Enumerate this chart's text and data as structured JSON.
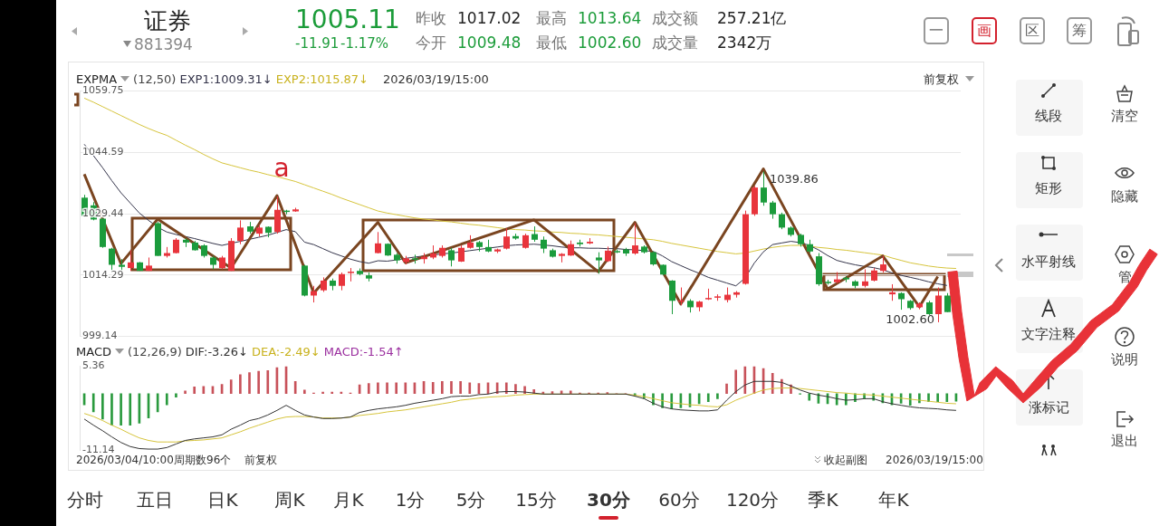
{
  "chart_data": [
    {
      "type": "candlestick",
      "categories": [
        null,
        null,
        null,
        null,
        null,
        null,
        null,
        null,
        null,
        null,
        null,
        null,
        null,
        null,
        null,
        null,
        null,
        null,
        null,
        null,
        null,
        null,
        null,
        null,
        null,
        null,
        null,
        null,
        null,
        null,
        null,
        null,
        null,
        null,
        null,
        null,
        null,
        null,
        null,
        null,
        null,
        null,
        null,
        null,
        null,
        null,
        null,
        null,
        null,
        null,
        null,
        null,
        null,
        null,
        null,
        null,
        null,
        null,
        null,
        null,
        null,
        null,
        null,
        null,
        null,
        null,
        null,
        null,
        null,
        null,
        null,
        null,
        null,
        null,
        null,
        null,
        null,
        null,
        null,
        null,
        null,
        null,
        null,
        null,
        null,
        null,
        null,
        null,
        null,
        null,
        null,
        null,
        null,
        null,
        null,
        null
      ],
      "ohlc": [
        [
          1033.4,
          1034.1,
          1028.6,
          1028.9
        ],
        [
          1031.5,
          1032.3,
          1027.8,
          1028.0
        ],
        [
          1028.2,
          1028.4,
          1021.0,
          1021.2
        ],
        [
          1020.8,
          1021.0,
          1015.3,
          1016.8
        ],
        [
          1016.8,
          1018.2,
          1015.3,
          1016.3
        ],
        [
          1016.0,
          1020.4,
          1015.3,
          1017.4
        ],
        [
          1017.4,
          1017.5,
          1015.3,
          1015.3
        ],
        [
          1015.3,
          1018.6,
          1015.3,
          1016.6
        ],
        [
          1027.1,
          1027.4,
          1019.0,
          1019.0
        ],
        [
          1019.0,
          1021.2,
          1018.6,
          1019.7
        ],
        [
          1019.7,
          1023.4,
          1019.6,
          1023.0
        ],
        [
          1023.0,
          1023.4,
          1021.2,
          1022.3
        ],
        [
          1022.3,
          1022.7,
          1020.3,
          1020.4
        ],
        [
          1021.6,
          1021.9,
          1018.6,
          1019.0
        ],
        [
          1018.6,
          1019.0,
          1015.7,
          1016.8
        ],
        [
          1016.0,
          1019.0,
          1015.7,
          1018.6
        ],
        [
          1015.3,
          1023.4,
          1015.3,
          1022.7
        ],
        [
          1022.7,
          1027.8,
          1021.9,
          1026.0
        ],
        [
          1026.3,
          1027.4,
          1024.5,
          1025.0
        ],
        [
          1024.5,
          1026.7,
          1023.8,
          1026.0
        ],
        [
          1026.2,
          1026.3,
          1023.6,
          1024.7
        ],
        [
          1024.9,
          1033.7,
          1024.5,
          1030.4
        ],
        [
          1030.2,
          1030.4,
          1029.3,
          1029.9
        ],
        [
          1030.0,
          1030.9,
          1029.9,
          1030.5
        ],
        [
          1016.6,
          1016.8,
          1009.0,
          1009.2
        ],
        [
          1009.2,
          1011.6,
          1007.5,
          1010.3
        ],
        [
          1010.5,
          1013.7,
          1010.1,
          1012.9
        ],
        [
          1012.9,
          1013.4,
          1010.5,
          1011.6
        ],
        [
          1011.6,
          1014.9,
          1010.5,
          1014.5
        ],
        [
          1014.8,
          1016.0,
          1012.7,
          1015.1
        ],
        [
          1015.3,
          1015.9,
          1014.2,
          1014.5
        ],
        [
          1014.2,
          1014.9,
          1012.7,
          1013.4
        ],
        [
          1019.7,
          1024.9,
          1019.6,
          1022.1
        ],
        [
          1022.0,
          1022.1,
          1019.0,
          1019.1
        ],
        [
          1019.3,
          1019.7,
          1017.1,
          1017.9
        ],
        [
          1017.5,
          1019.0,
          1016.9,
          1018.4
        ],
        [
          1018.4,
          1019.3,
          1017.1,
          1018.1
        ],
        [
          1018.2,
          1019.7,
          1017.1,
          1018.8
        ],
        [
          1018.6,
          1021.6,
          1018.2,
          1019.6
        ],
        [
          1019.0,
          1021.6,
          1018.6,
          1021.0
        ],
        [
          1020.4,
          1021.0,
          1016.4,
          1017.9
        ],
        [
          1017.6,
          1021.6,
          1017.5,
          1021.0
        ],
        [
          1021.0,
          1024.1,
          1020.8,
          1022.3
        ],
        [
          1022.4,
          1022.7,
          1020.1,
          1021.2
        ],
        [
          1021.2,
          1023.0,
          1019.9,
          1020.1
        ],
        [
          1020.1,
          1020.8,
          1019.7,
          1020.6
        ],
        [
          1020.8,
          1025.8,
          1020.6,
          1023.8
        ],
        [
          1023.9,
          1024.5,
          1023.0,
          1023.3
        ],
        [
          1021.0,
          1024.5,
          1020.8,
          1024.1
        ],
        [
          1024.4,
          1026.3,
          1022.5,
          1023.0
        ],
        [
          1023.0,
          1023.8,
          1019.7,
          1020.8
        ],
        [
          1020.4,
          1020.8,
          1018.6,
          1018.8
        ],
        [
          1019.0,
          1019.7,
          1017.4,
          1019.5
        ],
        [
          1019.1,
          1022.8,
          1019.0,
          1021.9
        ],
        [
          1022.3,
          1023.0,
          1021.3,
          1021.9
        ],
        [
          1022.1,
          1023.4,
          1021.9,
          1022.5
        ],
        [
          1018.6,
          1019.9,
          1014.6,
          1017.9
        ],
        [
          1017.7,
          1021.3,
          1017.5,
          1020.3
        ],
        [
          1020.2,
          1020.6,
          1019.7,
          1020.0
        ],
        [
          1020.6,
          1021.0,
          1019.0,
          1019.6
        ],
        [
          1019.6,
          1027.1,
          1019.3,
          1021.6
        ],
        [
          1021.3,
          1021.6,
          1019.6,
          1019.9
        ],
        [
          1019.9,
          1020.1,
          1016.6,
          1016.9
        ],
        [
          1016.8,
          1016.9,
          1014.2,
          1014.4
        ],
        [
          1012.9,
          1013.0,
          1004.6,
          1007.9
        ],
        [
          1007.7,
          1011.2,
          1006.8,
          1008.0
        ],
        [
          1007.9,
          1008.3,
          1005.0,
          1006.3
        ],
        [
          1006.3,
          1007.9,
          1005.3,
          1007.7
        ],
        [
          1008.3,
          1010.9,
          1008.1,
          1008.6
        ],
        [
          1008.7,
          1009.5,
          1007.9,
          1009.0
        ],
        [
          1008.1,
          1011.2,
          1007.5,
          1009.4
        ],
        [
          1009.4,
          1010.3,
          1008.7,
          1010.0
        ],
        [
          1012.1,
          1030.2,
          1011.9,
          1029.3
        ],
        [
          1029.3,
          1036.3,
          1028.9,
          1035.9
        ],
        [
          1035.9,
          1039.86,
          1031.4,
          1032.2
        ],
        [
          1032.2,
          1032.6,
          1028.2,
          1029.3
        ],
        [
          1029.3,
          1029.7,
          1025.6,
          1026.0
        ],
        [
          1026.0,
          1026.3,
          1023.8,
          1024.2
        ],
        [
          1024.2,
          1024.5,
          1021.3,
          1021.9
        ],
        [
          1021.9,
          1023.0,
          1019.7,
          1020.1
        ],
        [
          1018.9,
          1019.7,
          1011.6,
          1012.0
        ],
        [
          1012.6,
          1013.1,
          1011.9,
          1012.3
        ],
        [
          1012.5,
          1015.0,
          1012.2,
          1013.2
        ],
        [
          1013.6,
          1014.0,
          1012.5,
          1013.2
        ],
        [
          1012.7,
          1013.0,
          1011.0,
          1011.6
        ],
        [
          1011.6,
          1015.7,
          1011.2,
          1012.7
        ],
        [
          1012.9,
          1016.0,
          1012.7,
          1015.4
        ],
        [
          1015.3,
          1019.0,
          1014.9,
          1016.9
        ],
        [
          1009.5,
          1012.0,
          1007.9,
          1010.0
        ],
        [
          1009.8,
          1010.0,
          1005.7,
          1008.3
        ],
        [
          1007.9,
          1008.1,
          1005.7,
          1006.1
        ],
        [
          1006.3,
          1007.5,
          1005.8,
          1007.2
        ],
        [
          1007.5,
          1007.9,
          1004.4,
          1004.6
        ],
        [
          1004.6,
          1011.2,
          1002.6,
          1009.2
        ],
        [
          1009.2,
          1009.8,
          1005.1,
          1005.11
        ],
        null
      ],
      "colors": [
        "#1b9b3c",
        "#1b9b3c",
        "#1b9b3c",
        "#1b9b3c",
        "#1b9b3c",
        "#e8343c",
        "#1b9b3c",
        "#e8343c",
        "#1b9b3c",
        "#e8343c",
        "#e8343c",
        "#1b9b3c",
        "#1b9b3c",
        "#1b9b3c",
        "#1b9b3c",
        "#e8343c",
        "#e8343c",
        "#e8343c",
        "#1b9b3c",
        "#e8343c",
        "#1b9b3c",
        "#e8343c",
        "#1b9b3c",
        "#e8343c",
        "#1b9b3c",
        "#e8343c",
        "#e8343c",
        "#1b9b3c",
        "#e8343c",
        "#e8343c",
        "#1b9b3c",
        "#1b9b3c",
        "#e8343c",
        "#1b9b3c",
        "#1b9b3c",
        "#e8343c",
        "#1b9b3c",
        "#e8343c",
        "#e8343c",
        "#e8343c",
        "#1b9b3c",
        "#e8343c",
        "#e8343c",
        "#1b9b3c",
        "#1b9b3c",
        "#e8343c",
        "#e8343c",
        "#1b9b3c",
        "#e8343c",
        "#1b9b3c",
        "#1b9b3c",
        "#1b9b3c",
        "#e8343c",
        "#e8343c",
        "#1b9b3c",
        "#e8343c",
        "#1b9b3c",
        "#e8343c",
        "#1b9b3c",
        "#1b9b3c",
        "#e8343c",
        "#1b9b3c",
        "#1b9b3c",
        "#1b9b3c",
        "#1b9b3c",
        "#e8343c",
        "#1b9b3c",
        "#e8343c",
        "#e8343c",
        "#e8343c",
        "#e8343c",
        "#e8343c",
        "#e8343c",
        "#e8343c",
        "#1b9b3c",
        "#1b9b3c",
        "#1b9b3c",
        "#1b9b3c",
        "#1b9b3c",
        "#1b9b3c",
        "#1b9b3c",
        "#1b9b3c",
        "#e8343c",
        "#1b9b3c",
        "#1b9b3c",
        "#e8343c",
        "#e8343c",
        "#e8343c",
        "#e8343c",
        "#1b9b3c",
        "#1b9b3c",
        "#e8343c",
        "#1b9b3c",
        "#e8343c",
        "#1b9b3c",
        "#1b9b3c"
      ],
      "ylim": [
        999.14,
        1059.75
      ],
      "yticks": [
        999.14,
        1014.29,
        1029.44,
        1044.59,
        1059.75
      ],
      "grid": "y",
      "tick_labels": "y",
      "legend": "top left",
      "series": [
        {
          "type": "line",
          "color": "#7a4520",
          "values": [
            1039.2,
            null,
            null,
            null,
            1017.1,
            null,
            null,
            null,
            1028.1,
            null,
            null,
            null,
            null,
            null,
            null,
            null,
            1016.0,
            null,
            null,
            null,
            null,
            1033.9,
            null,
            null,
            null,
            1009.8,
            null,
            null,
            null,
            null,
            null,
            null,
            1027.3,
            null,
            null,
            1017.3,
            null,
            null,
            null,
            null,
            null,
            null,
            null,
            null,
            null,
            null,
            null,
            null,
            null,
            1027.9,
            null,
            null,
            null,
            null,
            null,
            null,
            1015.1,
            null,
            null,
            null,
            1027.3,
            null,
            null,
            null,
            null,
            1007.1,
            null,
            null,
            null,
            null,
            null,
            null,
            null,
            null,
            1040.5,
            null,
            null,
            null,
            null,
            null,
            null,
            1010.8,
            null,
            null,
            null,
            null,
            null,
            1019.0,
            null,
            null,
            null,
            1006.4,
            null,
            1013.9,
            null,
            null
          ]
        },
        {
          "name": "EXP1:1009.31↓",
          "type": "line",
          "color": "#34344a",
          "values": [
            1046.6,
            1043.8,
            1040.8,
            1037.6,
            1034.6,
            1032.1,
            1029.6,
            1027.8,
            1026.1,
            1024.9,
            1024.3,
            1023.8,
            1023.3,
            1022.7,
            1022.1,
            1021.6,
            1022.1,
            1022.6,
            1023.1,
            1023.6,
            1024.1,
            1024.8,
            1025.5,
            1025.0,
            1022.4,
            1021.8,
            1020.8,
            1019.8,
            1019.0,
            1018.2,
            1017.6,
            1017.2,
            1017.8,
            1017.7,
            1018.0,
            1018.4,
            1018.7,
            1019.0,
            1019.2,
            1019.5,
            1019.7,
            1020.0,
            1020.3,
            1020.6,
            1020.9,
            1021.2,
            1021.5,
            1021.7,
            1021.8,
            1021.9,
            1021.7,
            1021.5,
            1021.2,
            1021.0,
            1021.0,
            1020.9,
            1020.9,
            1020.8,
            1020.8,
            1020.6,
            1020.5,
            1020.3,
            1020.1,
            1019.0,
            1017.6,
            1016.6,
            1015.6,
            1014.7,
            1013.7,
            1013.0,
            1012.3,
            1011.6,
            1013.5,
            1017.2,
            1020.0,
            1021.8,
            1022.2,
            1022.6,
            1022.3,
            1021.6,
            1020.5,
            1019.1,
            1017.9,
            1017.3,
            1016.8,
            1016.4,
            1016.1,
            1015.6,
            1014.8,
            1014.2,
            1013.7,
            1013.2,
            1012.6,
            1012.1,
            1011.7,
            null
          ]
        },
        {
          "name": "EXP2:1015.87↓",
          "type": "line",
          "color": "#d6c43c",
          "values": [
            1058.0,
            1057.0,
            1055.9,
            1054.8,
            1053.7,
            1052.6,
            1051.5,
            1050.5,
            1049.6,
            1048.8,
            1047.6,
            1046.4,
            1045.3,
            1044.1,
            1043.0,
            1042.0,
            1041.4,
            1040.8,
            1040.2,
            1039.7,
            1039.1,
            1038.6,
            1038.0,
            1037.4,
            1036.6,
            1035.8,
            1035.0,
            1034.2,
            1033.3,
            1032.5,
            1031.7,
            1030.9,
            1030.1,
            1029.6,
            1029.2,
            1028.8,
            1028.4,
            1028.1,
            1027.9,
            1027.6,
            1027.4,
            1027.1,
            1026.8,
            1026.6,
            1026.3,
            1026.0,
            1025.7,
            1025.5,
            1025.4,
            1025.2,
            1025.1,
            1024.9,
            1024.8,
            1024.6,
            1024.5,
            1024.3,
            1024.2,
            1024.0,
            1023.8,
            1023.6,
            1023.4,
            1023.2,
            1023.0,
            1022.6,
            1022.1,
            1021.7,
            1021.3,
            1020.9,
            1020.5,
            1020.1,
            1019.8,
            1019.5,
            1019.7,
            1020.2,
            1020.7,
            1021.1,
            1021.4,
            1021.6,
            1021.6,
            1021.4,
            1021.1,
            1020.9,
            1020.6,
            1020.4,
            1020.1,
            1019.8,
            1019.5,
            1019.2,
            1018.5,
            1017.9,
            1017.3,
            1016.9,
            1016.5,
            1016.2,
            1016.0,
            1015.9
          ]
        }
      ],
      "annotations": [
        "EXPMA",
        "(12,50)",
        "2026/03/19/15:00",
        "前复权",
        "a",
        "1039.86",
        "1002.60"
      ]
    },
    {
      "type": "bar",
      "categories": [
        null,
        null,
        null,
        null,
        null,
        null,
        null,
        null,
        null,
        null,
        null,
        null,
        null,
        null,
        null,
        null,
        null,
        null,
        null,
        null,
        null,
        null,
        null,
        null,
        null,
        null,
        null,
        null,
        null,
        null,
        null,
        null,
        null,
        null,
        null,
        null,
        null,
        null,
        null,
        null,
        null,
        null,
        null,
        null,
        null,
        null,
        null,
        null,
        null,
        null,
        null,
        null,
        null,
        null,
        null,
        null,
        null,
        null,
        null,
        null,
        null,
        null,
        null,
        null,
        null,
        null,
        null,
        null,
        null,
        null,
        null,
        null,
        null,
        null,
        null,
        null,
        null,
        null,
        null,
        null,
        null,
        null,
        null,
        null,
        null,
        null,
        null,
        null,
        null,
        null,
        null,
        null,
        null,
        null,
        null,
        null
      ],
      "ylim": [
        -11.14,
        5.36
      ],
      "yticks": [
        -11.14,
        5.36
      ],
      "tick_labels": "y",
      "legend": "top left",
      "series": [
        {
          "name": "DIF:-3.26↓",
          "type": "line",
          "color": "#333333",
          "values": [
            -5.0,
            -6.2,
            -7.3,
            -8.5,
            -9.6,
            -10.4,
            -10.8,
            -10.9,
            -10.9,
            -10.6,
            -9.9,
            -9.2,
            -8.9,
            -8.7,
            -8.5,
            -8.1,
            -7.0,
            -6.2,
            -5.3,
            -4.9,
            -4.2,
            -3.3,
            -2.3,
            -3.3,
            -4.2,
            -4.6,
            -4.9,
            -4.9,
            -4.8,
            -4.6,
            -3.7,
            -3.3,
            -3.0,
            -2.8,
            -2.6,
            -2.3,
            -1.9,
            -1.6,
            -1.3,
            -1.0,
            -0.6,
            -0.5,
            -0.5,
            -0.2,
            -0.1,
            0.3,
            0.4,
            0.4,
            0.3,
            0.1,
            -0.1,
            -0.1,
            -0.1,
            -0.1,
            -0.1,
            -0.1,
            -0.1,
            -0.1,
            -0.1,
            -0.1,
            -0.5,
            -1.0,
            -1.9,
            -2.6,
            -3.0,
            -3.2,
            -3.3,
            -3.4,
            -3.4,
            -3.2,
            -1.3,
            0.4,
            1.7,
            2.4,
            2.4,
            2.4,
            2.2,
            1.5,
            0.7,
            0.1,
            -0.3,
            -0.6,
            -1.0,
            -1.3,
            -1.2,
            -1.0,
            -1.0,
            -1.6,
            -2.0,
            -2.3,
            -2.6,
            -2.8,
            -2.9,
            -3.0,
            -3.2,
            -3.3
          ]
        },
        {
          "name": "DEA:-2.49↓",
          "type": "line",
          "color": "#d6c43c",
          "values": [
            -3.9,
            -4.5,
            -5.3,
            -6.2,
            -7.0,
            -7.9,
            -8.7,
            -9.2,
            -9.5,
            -9.5,
            -9.5,
            -9.3,
            -9.2,
            -9.1,
            -8.9,
            -8.7,
            -8.1,
            -7.5,
            -6.8,
            -6.2,
            -5.6,
            -5.0,
            -4.6,
            -4.5,
            -4.5,
            -4.6,
            -4.8,
            -4.8,
            -4.8,
            -4.6,
            -4.3,
            -4.1,
            -3.9,
            -3.6,
            -3.4,
            -3.2,
            -2.9,
            -2.6,
            -2.3,
            -2.0,
            -1.7,
            -1.3,
            -1.1,
            -0.9,
            -0.7,
            -0.6,
            -0.5,
            -0.3,
            -0.2,
            -0.1,
            -0.1,
            -0.1,
            -0.1,
            -0.1,
            -0.1,
            -0.1,
            -0.1,
            -0.1,
            -0.1,
            -0.1,
            -0.3,
            -0.6,
            -1.0,
            -1.4,
            -1.8,
            -2.0,
            -2.2,
            -2.3,
            -2.5,
            -2.6,
            -2.2,
            -1.3,
            -0.6,
            0.1,
            0.7,
            1.0,
            1.1,
            1.1,
            1.0,
            0.8,
            0.6,
            0.4,
            0.2,
            0.1,
            -0.1,
            -0.2,
            -0.3,
            -0.5,
            -0.7,
            -0.9,
            -1.1,
            -1.3,
            -1.5,
            -1.7,
            -1.9,
            -2.0
          ]
        },
        {
          "name": "MACD:-1.54↑",
          "type": "bar",
          "values": [
            -2.2,
            -3.6,
            -5.0,
            -6.2,
            -6.2,
            -6.2,
            -5.8,
            -4.8,
            -3.6,
            -2.2,
            -0.7,
            0.5,
            1.3,
            1.4,
            1.4,
            1.8,
            2.7,
            3.7,
            4.1,
            4.4,
            4.5,
            5.1,
            5.3,
            2.4,
            0.7,
            0.1,
            0.3,
            0.3,
            0.3,
            0.1,
            1.7,
            2.0,
            2.1,
            2.1,
            2.1,
            2.1,
            2.1,
            2.4,
            2.2,
            2.4,
            2.4,
            2.4,
            2.1,
            2.0,
            2.1,
            2.1,
            2.1,
            1.8,
            1.4,
            0.8,
            0.3,
            0.4,
            0.5,
            0.5,
            0.1,
            0.1,
            0.1,
            0.2,
            0,
            0,
            -0.5,
            -0.9,
            -2.2,
            -2.8,
            -3.0,
            -2.8,
            -2.6,
            -2.0,
            -1.6,
            -1.0,
            1.9,
            4.6,
            5.3,
            5.3,
            4.9,
            4.0,
            2.8,
            1.7,
            -0.1,
            -1.3,
            -1.9,
            -2.0,
            -2.2,
            -2.2,
            -1.6,
            -1.0,
            -1.3,
            -1.8,
            -2.2,
            -1.9,
            -2.3,
            -1.8,
            -1.6,
            -1.6,
            -1.6,
            -1.5
          ],
          "colors": [
            "#2a9a3e",
            "#2a9a3e",
            "#2a9a3e",
            "#2a9a3e",
            "#2a9a3e",
            "#2a9a3e",
            "#2a9a3e",
            "#2a9a3e",
            "#2a9a3e",
            "#2a9a3e",
            "#2a9a3e",
            "#c8525a",
            "#c8525a",
            "#c8525a",
            "#c8525a",
            "#c8525a",
            "#c8525a",
            "#c8525a",
            "#c8525a",
            "#c8525a",
            "#c8525a",
            "#c8525a",
            "#c8525a",
            "#c8525a",
            "#c8525a",
            "#c8525a",
            "#c8525a",
            "#c8525a",
            "#c8525a",
            "#c8525a",
            "#c8525a",
            "#c8525a",
            "#c8525a",
            "#c8525a",
            "#c8525a",
            "#c8525a",
            "#c8525a",
            "#c8525a",
            "#c8525a",
            "#c8525a",
            "#c8525a",
            "#c8525a",
            "#c8525a",
            "#c8525a",
            "#c8525a",
            "#c8525a",
            "#c8525a",
            "#c8525a",
            "#c8525a",
            "#c8525a",
            "#c8525a",
            "#c8525a",
            "#c8525a",
            "#c8525a",
            "#c8525a",
            "#c8525a",
            "#c8525a",
            "#c8525a",
            "#c8525a",
            "#c8525a",
            "#2a9a3e",
            "#2a9a3e",
            "#2a9a3e",
            "#2a9a3e",
            "#2a9a3e",
            "#2a9a3e",
            "#2a9a3e",
            "#2a9a3e",
            "#2a9a3e",
            "#2a9a3e",
            "#c8525a",
            "#c8525a",
            "#c8525a",
            "#c8525a",
            "#c8525a",
            "#c8525a",
            "#c8525a",
            "#c8525a",
            "#2a9a3e",
            "#2a9a3e",
            "#2a9a3e",
            "#2a9a3e",
            "#2a9a3e",
            "#2a9a3e",
            "#2a9a3e",
            "#2a9a3e",
            "#2a9a3e",
            "#2a9a3e",
            "#2a9a3e",
            "#2a9a3e",
            "#2a9a3e",
            "#2a9a3e",
            "#2a9a3e",
            "#2a9a3e",
            "#2a9a3e",
            "#2a9a3e"
          ]
        }
      ],
      "annotations": [
        "MACD",
        "(12,26,9)",
        "2026/03/04/10:00",
        "周期数96个",
        "前复权",
        "收起副图",
        "2026/03/19/15:00"
      ]
    },
    {
      "type": "other",
      "title": "证券",
      "subtitle": "881394",
      "annotations": [
        "1005.11",
        "-11.91",
        "-1.17%",
        "昨收",
        "1017.02",
        "最高",
        "1013.64",
        "成交额",
        "257.21亿",
        "今开",
        "1009.48",
        "最低",
        "1002.60",
        "成交量",
        "2342万",
        "一",
        "画",
        "区",
        "筹",
        "分时",
        "五日",
        "日K",
        "周K",
        "月K",
        "1分",
        "5分",
        "15分",
        "30分",
        "60分",
        "120分",
        "季K",
        "年K",
        "线段",
        "矩形",
        "水平射线",
        "文字注释",
        "涨标记",
        "清空",
        "隐藏",
        "管",
        "说明",
        "退出"
      ]
    }
  ]
}
